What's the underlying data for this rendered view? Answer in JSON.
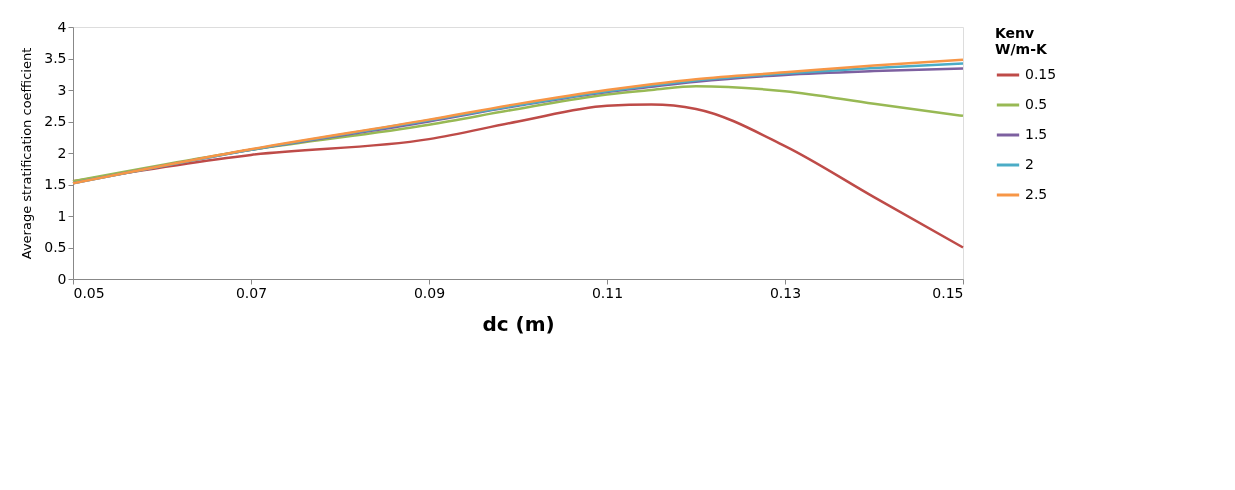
{
  "chart_data": {
    "type": "line",
    "xlabel": "dc (m)",
    "ylabel": "Average stratification coefficient",
    "legend_title": "Kenv\nW/m-K",
    "x": [
      0.05,
      0.07,
      0.09,
      0.1,
      0.11,
      0.115,
      0.12,
      0.13,
      0.14,
      0.15
    ],
    "series": [
      {
        "name": "0.15",
        "color": "#be4b48",
        "values": [
          1.55,
          1.97,
          2.22,
          2.5,
          2.75,
          2.77,
          2.7,
          2.11,
          1.3,
          0.5
        ]
      },
      {
        "name": "0.5",
        "color": "#98b954",
        "values": [
          1.55,
          2.05,
          2.45,
          2.7,
          2.93,
          3.0,
          3.06,
          2.98,
          2.78,
          2.59
        ]
      },
      {
        "name": "1.5",
        "color": "#7d60a0",
        "values": [
          1.52,
          2.05,
          2.5,
          2.75,
          2.97,
          3.05,
          3.13,
          3.24,
          3.3,
          3.34
        ]
      },
      {
        "name": "2",
        "color": "#4bacc6",
        "values": [
          1.52,
          2.05,
          2.52,
          2.76,
          2.98,
          3.07,
          3.15,
          3.26,
          3.35,
          3.42
        ]
      },
      {
        "name": "2.5",
        "color": "#f79646",
        "values": [
          1.52,
          2.06,
          2.53,
          2.78,
          3.0,
          3.09,
          3.17,
          3.28,
          3.39,
          3.48
        ]
      }
    ],
    "xlim": [
      0.05,
      0.15
    ],
    "xticks": [
      0.05,
      0.07,
      0.09,
      0.11,
      0.13,
      0.15
    ],
    "ylim": [
      0,
      4
    ],
    "yticks": [
      0,
      0.5,
      1,
      1.5,
      2,
      2.5,
      3,
      3.5,
      4
    ],
    "grid": false,
    "legend": "right",
    "marker": "none",
    "line_style": "solid"
  }
}
